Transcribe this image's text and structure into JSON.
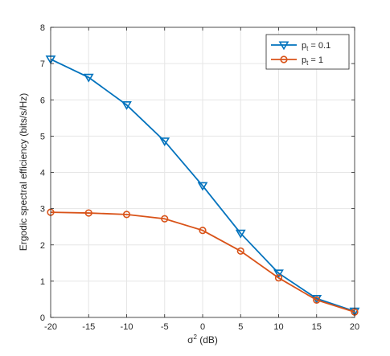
{
  "chart_data": {
    "type": "line",
    "xlabel": {
      "symbol": "σ",
      "sup": "2",
      "unit": " (dB)"
    },
    "ylabel": "Ergodic spectral efficiency (bits/s/Hz)",
    "xlim": [
      -20,
      20
    ],
    "ylim": [
      0,
      8
    ],
    "xticks": [
      -20,
      -15,
      -10,
      -5,
      0,
      5,
      10,
      15,
      20
    ],
    "yticks": [
      0,
      1,
      2,
      3,
      4,
      5,
      6,
      7,
      8
    ],
    "grid": true,
    "legend_position": "top-right",
    "x": [
      -20,
      -15,
      -10,
      -5,
      0,
      5,
      10,
      15,
      20
    ],
    "series": [
      {
        "name": {
          "base": "p",
          "sub": "t",
          "rest": " = 0.1"
        },
        "color": "#0072BD",
        "marker": "down-triangle",
        "values": [
          7.12,
          6.62,
          5.86,
          4.86,
          3.63,
          2.32,
          1.22,
          0.52,
          0.17
        ]
      },
      {
        "name": {
          "base": "p",
          "sub": "t",
          "rest": " = 1"
        },
        "color": "#D95319",
        "marker": "circle",
        "values": [
          2.9,
          2.88,
          2.84,
          2.72,
          2.4,
          1.83,
          1.09,
          0.48,
          0.15
        ]
      }
    ]
  }
}
